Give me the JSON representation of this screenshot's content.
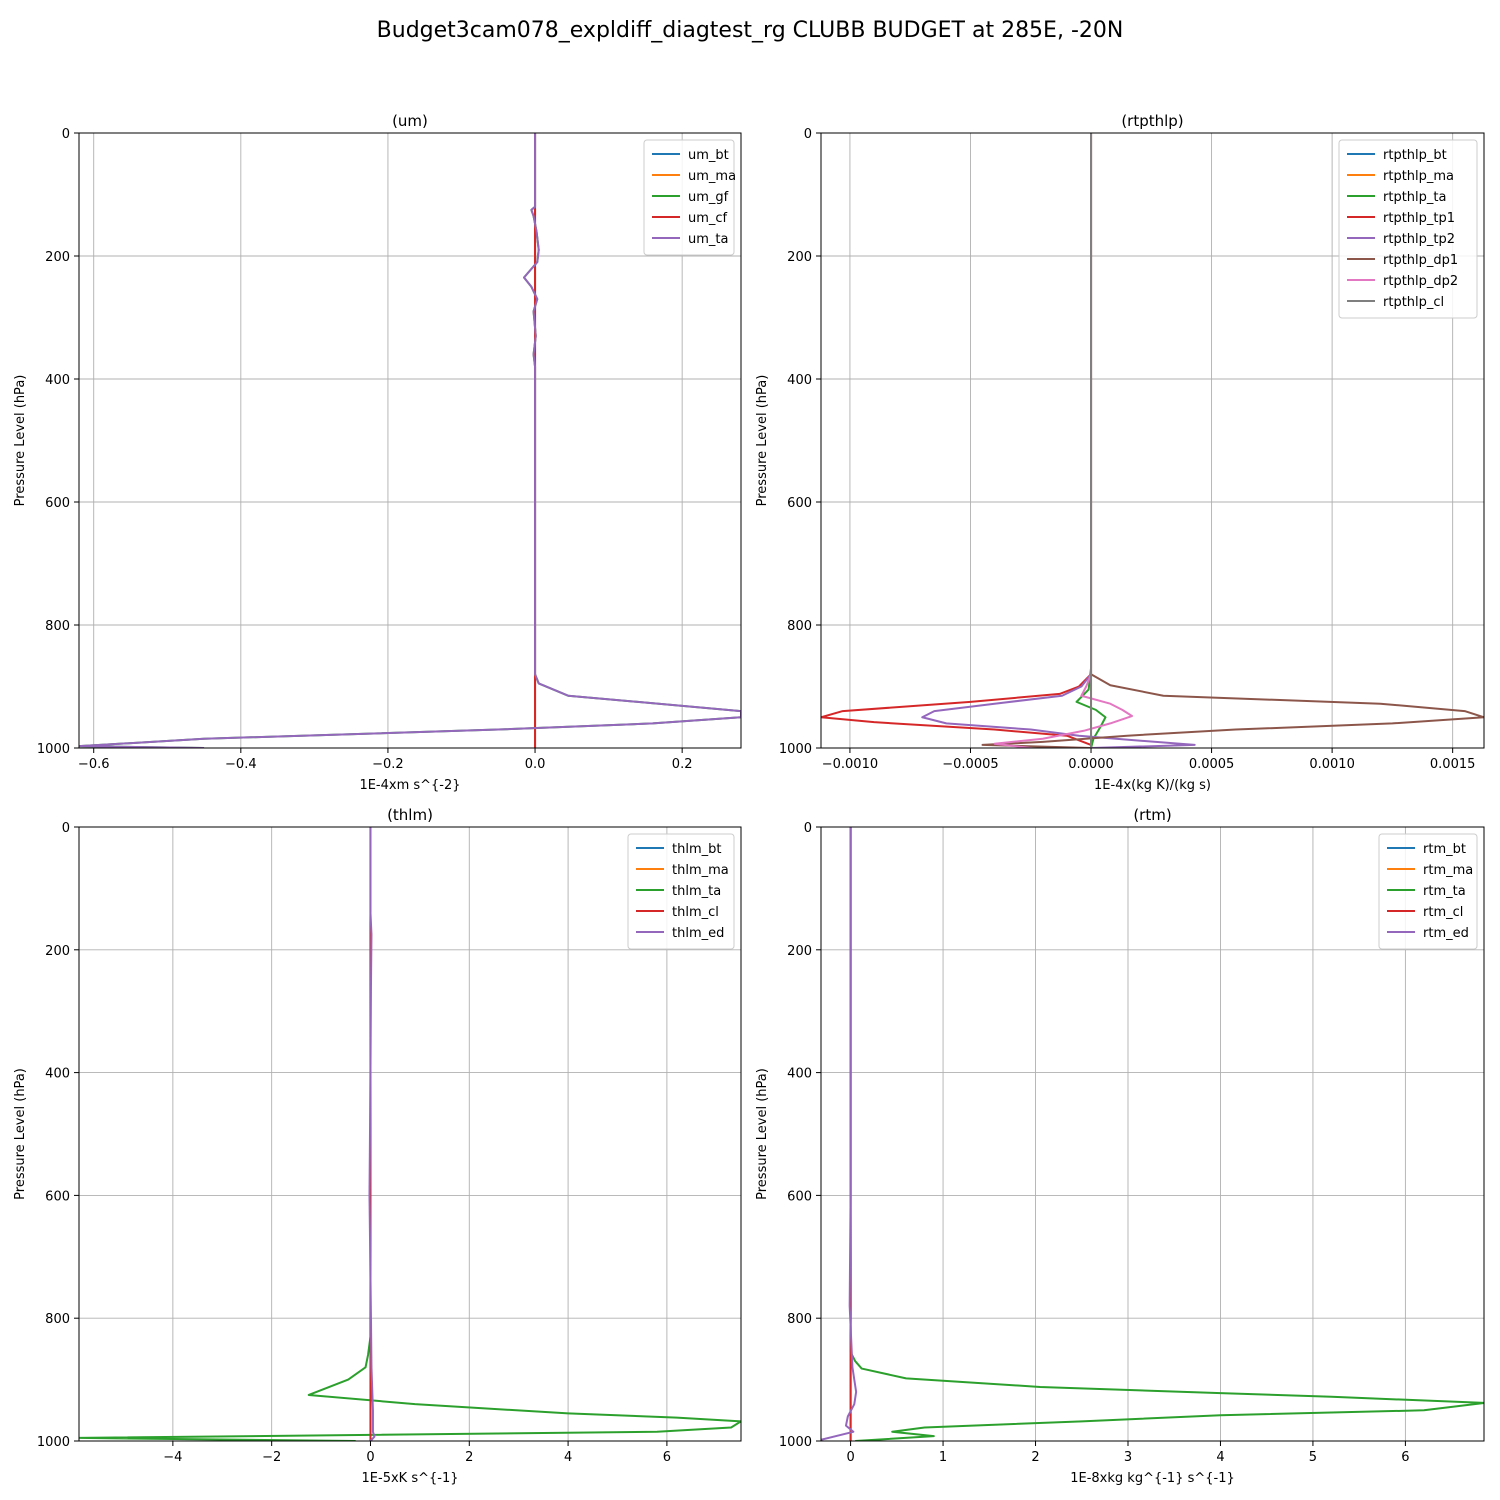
{
  "figure": {
    "title": "Budget3cam078_expldiff_diagtest_rg CLUBB BUDGET at 285E, -20N"
  },
  "colors": {
    "grid": "#b0b0b0",
    "palette": [
      "#1f77b4",
      "#ff7f0e",
      "#2ca02c",
      "#d62728",
      "#9467bd",
      "#8c564b",
      "#e377c2",
      "#7f7f7f"
    ]
  },
  "chart_data": [
    {
      "type": "line",
      "title": "(um)",
      "xlabel": "1E-4xm s^{-2}",
      "ylabel": "Pressure Level (hPa)",
      "xlim": [
        -0.62,
        0.28
      ],
      "ylim": [
        1000,
        0
      ],
      "y_inverted": true,
      "grid": true,
      "legend": "upper right",
      "xticks": [
        -0.6,
        -0.4,
        -0.2,
        0.0,
        0.2
      ],
      "xticklabels": [
        "−0.6",
        "−0.4",
        "−0.2",
        "0.0",
        "0.2"
      ],
      "yticks": [
        0,
        200,
        400,
        600,
        800,
        1000
      ],
      "series": [
        {
          "name": "um_bt",
          "color": "#1f77b4",
          "points": [
            [
              0,
              0
            ],
            [
              0,
              1000
            ]
          ]
        },
        {
          "name": "um_ma",
          "color": "#ff7f0e",
          "points": [
            [
              0,
              0
            ],
            [
              0,
              1000
            ]
          ]
        },
        {
          "name": "um_gf",
          "color": "#2ca02c",
          "points": [
            [
              0,
              0
            ],
            [
              0,
              120
            ],
            [
              -0.005,
              125
            ],
            [
              -0.002,
              135
            ],
            [
              0.002,
              160
            ],
            [
              0.005,
              190
            ],
            [
              0.003,
              210
            ],
            [
              -0.015,
              235
            ],
            [
              -0.005,
              250
            ],
            [
              0.003,
              270
            ],
            [
              -0.002,
              290
            ],
            [
              0.001,
              330
            ],
            [
              -0.002,
              360
            ],
            [
              0,
              380
            ],
            [
              0,
              600
            ],
            [
              0,
              880
            ],
            [
              0.005,
              895
            ],
            [
              0.045,
              915
            ],
            [
              0.28,
              940
            ],
            [
              0.28,
              950
            ],
            [
              0.16,
              960
            ],
            [
              -0.05,
              970
            ],
            [
              -0.45,
              985
            ],
            [
              -0.62,
              997
            ],
            [
              -0.45,
              1000
            ]
          ]
        },
        {
          "name": "um_cf",
          "color": "#d62728",
          "points": [
            [
              0,
              0
            ],
            [
              0,
              1000
            ]
          ]
        },
        {
          "name": "um_ta",
          "color": "#9467bd",
          "points": [
            [
              0,
              0
            ],
            [
              0,
              120
            ],
            [
              -0.005,
              125
            ],
            [
              -0.002,
              135
            ],
            [
              0.002,
              160
            ],
            [
              0.005,
              190
            ],
            [
              0.003,
              210
            ],
            [
              -0.015,
              235
            ],
            [
              -0.005,
              250
            ],
            [
              0.003,
              270
            ],
            [
              -0.002,
              290
            ],
            [
              0.001,
              330
            ],
            [
              -0.002,
              360
            ],
            [
              0,
              380
            ],
            [
              0,
              600
            ],
            [
              0,
              880
            ],
            [
              0.005,
              895
            ],
            [
              0.045,
              915
            ],
            [
              0.28,
              940
            ],
            [
              0.28,
              950
            ],
            [
              0.16,
              960
            ],
            [
              -0.05,
              970
            ],
            [
              -0.45,
              985
            ],
            [
              -0.62,
              997
            ],
            [
              -0.45,
              1000
            ]
          ]
        }
      ]
    },
    {
      "type": "line",
      "title": "(rtpthlp)",
      "xlabel": "1E-4x(kg K)/(kg s)",
      "ylabel": "Pressure Level (hPa)",
      "xlim": [
        -0.00112,
        0.00163
      ],
      "ylim": [
        1000,
        0
      ],
      "y_inverted": true,
      "grid": true,
      "legend": "upper right",
      "xticks": [
        -0.001,
        -0.0005,
        0.0,
        0.0005,
        0.001,
        0.0015
      ],
      "xticklabels": [
        "−0.0010",
        "−0.0005",
        "0.0000",
        "0.0005",
        "0.0010",
        "0.0015"
      ],
      "yticks": [
        0,
        200,
        400,
        600,
        800,
        1000
      ],
      "series": [
        {
          "name": "rtpthlp_bt",
          "color": "#1f77b4",
          "points": [
            [
              0,
              0
            ],
            [
              0,
              1000
            ]
          ]
        },
        {
          "name": "rtpthlp_ma",
          "color": "#ff7f0e",
          "points": [
            [
              0,
              0
            ],
            [
              0,
              1000
            ]
          ]
        },
        {
          "name": "rtpthlp_ta",
          "color": "#2ca02c",
          "points": [
            [
              0,
              0
            ],
            [
              0,
              870
            ],
            [
              -1e-05,
              905
            ],
            [
              -6e-05,
              925
            ],
            [
              2e-05,
              938
            ],
            [
              6e-05,
              950
            ],
            [
              4e-05,
              965
            ],
            [
              1e-05,
              985
            ],
            [
              0,
              1000
            ]
          ]
        },
        {
          "name": "rtpthlp_tp1",
          "color": "#d62728",
          "points": [
            [
              0,
              0
            ],
            [
              0,
              880
            ],
            [
              -5e-05,
              900
            ],
            [
              -0.00013,
              912
            ],
            [
              -0.0005,
              925
            ],
            [
              -0.00103,
              940
            ],
            [
              -0.00112,
              950
            ],
            [
              -0.0009,
              958
            ],
            [
              -0.0004,
              970
            ],
            [
              -0.0001,
              980
            ],
            [
              0,
              995
            ],
            [
              0,
              1000
            ]
          ]
        },
        {
          "name": "rtpthlp_tp2",
          "color": "#9467bd",
          "points": [
            [
              0,
              0
            ],
            [
              0,
              880
            ],
            [
              -4e-05,
              900
            ],
            [
              -0.00012,
              915
            ],
            [
              -0.0004,
              928
            ],
            [
              -0.00065,
              940
            ],
            [
              -0.0007,
              950
            ],
            [
              -0.0006,
              960
            ],
            [
              -0.00025,
              970
            ],
            [
              -5e-05,
              980
            ],
            [
              0.0002,
              988
            ],
            [
              0.00043,
              995
            ],
            [
              0,
              1000
            ]
          ]
        },
        {
          "name": "rtpthlp_dp1",
          "color": "#8c564b",
          "points": [
            [
              0,
              0
            ],
            [
              0,
              880
            ],
            [
              8e-05,
              898
            ],
            [
              0.0003,
              915
            ],
            [
              0.0012,
              928
            ],
            [
              0.00155,
              940
            ],
            [
              0.00163,
              950
            ],
            [
              0.00125,
              960
            ],
            [
              0.0006,
              970
            ],
            [
              0.00015,
              980
            ],
            [
              -0.0002,
              990
            ],
            [
              -0.00045,
              995
            ],
            [
              0,
              1000
            ]
          ]
        },
        {
          "name": "rtpthlp_dp2",
          "color": "#e377c2",
          "points": [
            [
              0,
              0
            ],
            [
              0,
              880
            ],
            [
              -2e-05,
              900
            ],
            [
              -4e-05,
              915
            ],
            [
              8e-05,
              928
            ],
            [
              0.00013,
              938
            ],
            [
              0.00017,
              948
            ],
            [
              8e-05,
              960
            ],
            [
              -3e-05,
              972
            ],
            [
              -0.0002,
              985
            ],
            [
              -0.0004,
              993
            ],
            [
              -0.00025,
              1000
            ]
          ]
        },
        {
          "name": "rtpthlp_cl",
          "color": "#7f7f7f",
          "points": [
            [
              0,
              0
            ],
            [
              0,
              1000
            ]
          ]
        }
      ]
    },
    {
      "type": "line",
      "title": "(thlm)",
      "xlabel": "1E-5xK s^{-1}",
      "ylabel": "Pressure Level (hPa)",
      "xlim": [
        -5.9,
        7.5
      ],
      "ylim": [
        1000,
        0
      ],
      "y_inverted": true,
      "grid": true,
      "legend": "upper right",
      "xticks": [
        -4,
        -2,
        0,
        2,
        4,
        6
      ],
      "xticklabels": [
        "−4",
        "−2",
        "0",
        "2",
        "4",
        "6"
      ],
      "yticks": [
        0,
        200,
        400,
        600,
        800,
        1000
      ],
      "series": [
        {
          "name": "thlm_bt",
          "color": "#1f77b4",
          "points": [
            [
              0,
              0
            ],
            [
              0,
              1000
            ]
          ]
        },
        {
          "name": "thlm_ma",
          "color": "#ff7f0e",
          "points": [
            [
              0,
              0
            ],
            [
              0,
              1000
            ]
          ]
        },
        {
          "name": "thlm_ta",
          "color": "#2ca02c",
          "points": [
            [
              0,
              0
            ],
            [
              0,
              830
            ],
            [
              -0.05,
              860
            ],
            [
              -0.1,
              880
            ],
            [
              -0.45,
              900
            ],
            [
              -1.25,
              925
            ],
            [
              0.9,
              940
            ],
            [
              4,
              955
            ],
            [
              6.2,
              962
            ],
            [
              7.5,
              968
            ],
            [
              7.3,
              978
            ],
            [
              5.8,
              985
            ],
            [
              0,
              990
            ],
            [
              -5.9,
              995
            ],
            [
              -0.3,
              1000
            ]
          ]
        },
        {
          "name": "thlm_cl",
          "color": "#d62728",
          "points": [
            [
              0,
              0
            ],
            [
              0,
              1000
            ]
          ]
        },
        {
          "name": "thlm_ed",
          "color": "#9467bd",
          "points": [
            [
              0,
              0
            ],
            [
              0,
              140
            ],
            [
              0.02,
              175
            ],
            [
              0.01,
              260
            ],
            [
              0,
              400
            ],
            [
              -0.02,
              600
            ],
            [
              0.01,
              800
            ],
            [
              0.02,
              880
            ],
            [
              0.05,
              950
            ],
            [
              0.05,
              985
            ],
            [
              0.08,
              993
            ],
            [
              0,
              1000
            ]
          ]
        }
      ]
    },
    {
      "type": "line",
      "title": "(rtm)",
      "xlabel": "1E-8xkg kg^{-1} s^{-1}",
      "ylabel": "Pressure Level (hPa)",
      "xlim": [
        -0.32,
        6.85
      ],
      "ylim": [
        1000,
        0
      ],
      "y_inverted": true,
      "grid": true,
      "legend": "upper right",
      "xticks": [
        0,
        1,
        2,
        3,
        4,
        5,
        6
      ],
      "xticklabels": [
        "0",
        "1",
        "2",
        "3",
        "4",
        "5",
        "6"
      ],
      "yticks": [
        0,
        200,
        400,
        600,
        800,
        1000
      ],
      "series": [
        {
          "name": "rtm_bt",
          "color": "#1f77b4",
          "points": [
            [
              0,
              0
            ],
            [
              0,
              1000
            ]
          ]
        },
        {
          "name": "rtm_ma",
          "color": "#ff7f0e",
          "points": [
            [
              0,
              0
            ],
            [
              0,
              1000
            ]
          ]
        },
        {
          "name": "rtm_ta",
          "color": "#2ca02c",
          "points": [
            [
              0,
              0
            ],
            [
              0,
              855
            ],
            [
              0.05,
              870
            ],
            [
              0.12,
              882
            ],
            [
              0.6,
              898
            ],
            [
              2.05,
              912
            ],
            [
              4,
              922
            ],
            [
              5.2,
              928
            ],
            [
              6.85,
              938
            ],
            [
              6.2,
              950
            ],
            [
              4,
              958
            ],
            [
              2.5,
              968
            ],
            [
              0.8,
              978
            ],
            [
              0.45,
              985
            ],
            [
              0.9,
              992
            ],
            [
              0.05,
              1000
            ]
          ]
        },
        {
          "name": "rtm_cl",
          "color": "#d62728",
          "points": [
            [
              0,
              0
            ],
            [
              0,
              1000
            ]
          ]
        },
        {
          "name": "rtm_ed",
          "color": "#9467bd",
          "points": [
            [
              0,
              0
            ],
            [
              0,
              600
            ],
            [
              -0.01,
              780
            ],
            [
              0.02,
              880
            ],
            [
              0.04,
              900
            ],
            [
              0.06,
              920
            ],
            [
              0.04,
              940
            ],
            [
              -0.03,
              960
            ],
            [
              -0.05,
              975
            ],
            [
              0.03,
              985
            ],
            [
              -0.32,
              998
            ]
          ]
        }
      ]
    }
  ]
}
